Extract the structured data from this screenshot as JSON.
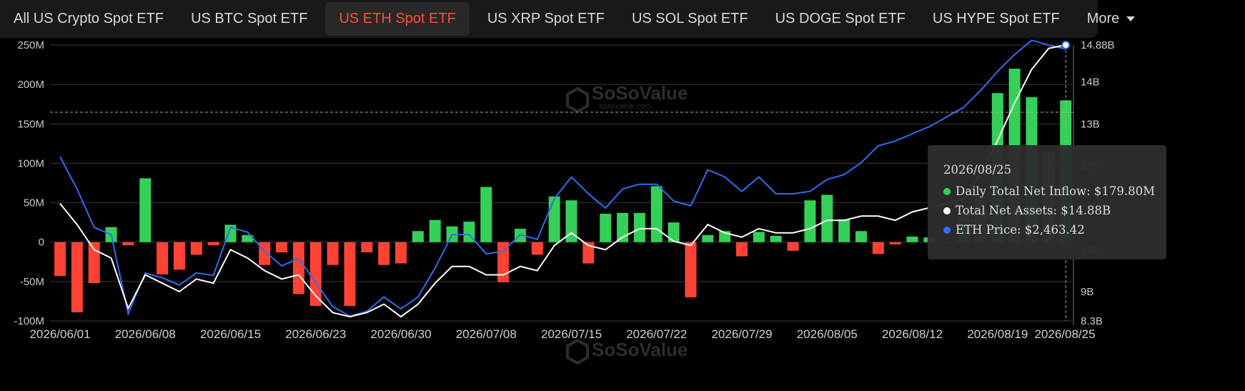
{
  "tabs": [
    {
      "label": "All US Crypto Spot ETF"
    },
    {
      "label": "US BTC Spot ETF"
    },
    {
      "label": "US ETH Spot ETF",
      "active": true
    },
    {
      "label": "US XRP Spot ETF"
    },
    {
      "label": "US SOL Spot ETF"
    },
    {
      "label": "US DOGE Spot ETF"
    },
    {
      "label": "US HYPE Spot ETF"
    }
  ],
  "more_label": "More",
  "watermark": {
    "brand": "SoSoValue",
    "site": "sosovalue.com"
  },
  "tooltip": {
    "date": "2026/08/25",
    "rows": [
      {
        "label": "Daily Total Net Inflow: $179.80M",
        "color": "#34d058"
      },
      {
        "label": "Total Net Assets: $14.88B",
        "color": "#ffffff"
      },
      {
        "label": "ETH Price: $2,463.42",
        "color": "#2f6df0"
      }
    ]
  },
  "chart_data": {
    "type": "bar",
    "colors": {
      "positive": "#34d058",
      "negative": "#ff4233",
      "assets_line": "#ffffff",
      "price_line": "#2f6df0"
    },
    "left_axis": {
      "ticks": [
        "250M",
        "200M",
        "150M",
        "100M",
        "50M",
        "0",
        "-50M",
        "-100M"
      ],
      "values": [
        250,
        200,
        150,
        100,
        50,
        0,
        -50,
        -100
      ],
      "range": [
        -100,
        250
      ]
    },
    "right_axis": {
      "ticks": [
        "14.88B",
        "14B",
        "13B",
        "12B",
        "11B",
        "10B",
        "9B",
        "8.3B"
      ],
      "values": [
        14.88,
        14,
        13,
        12,
        11,
        10,
        9,
        8.3
      ],
      "range": [
        8.3,
        14.88
      ]
    },
    "x_ticks": [
      "2026/06/01",
      "2026/06/08",
      "2026/06/15",
      "2026/06/23",
      "2026/06/30",
      "2026/07/08",
      "2026/07/15",
      "2026/07/22",
      "2026/07/29",
      "2026/08/05",
      "2026/08/12",
      "2026/08/19",
      "2026/08/25"
    ],
    "x_tick_index": [
      0,
      5,
      10,
      15,
      20,
      25,
      30,
      35,
      40,
      45,
      50,
      55,
      59
    ],
    "series": [
      {
        "name": "Daily Total Net Inflow",
        "unit": "M USD",
        "values": [
          -43,
          -89,
          -52,
          19,
          -4,
          81,
          -41,
          -35,
          -16,
          -4,
          22,
          9,
          -29,
          -13,
          -66,
          -81,
          -29,
          -81,
          -13,
          -29,
          -27,
          14,
          28,
          20,
          26,
          70,
          -51,
          17,
          -16,
          58,
          53,
          -27,
          36,
          37,
          37,
          71,
          25,
          -70,
          9,
          14,
          -18,
          13,
          8,
          -11,
          53,
          60,
          29,
          14,
          -15,
          -3,
          7,
          6,
          -2,
          39,
          56,
          189,
          220,
          184,
          115,
          179.8
        ]
      },
      {
        "name": "Total Net Assets",
        "unit": "B USD",
        "values": [
          11.1,
          10.6,
          10.0,
          9.8,
          8.6,
          9.4,
          9.2,
          9.0,
          9.3,
          9.2,
          10.0,
          9.8,
          9.5,
          9.3,
          9.4,
          8.9,
          8.5,
          8.4,
          8.5,
          8.7,
          8.4,
          8.7,
          9.2,
          9.6,
          9.6,
          9.4,
          9.4,
          9.6,
          9.5,
          10.1,
          10.4,
          10.1,
          10.0,
          10.3,
          10.5,
          10.5,
          10.2,
          10.1,
          10.6,
          10.4,
          10.3,
          10.5,
          10.4,
          10.4,
          10.5,
          10.7,
          10.7,
          10.8,
          10.8,
          10.7,
          10.9,
          11.0,
          11.1,
          11.2,
          11.8,
          12.6,
          13.5,
          14.3,
          14.8,
          14.88
        ]
      },
      {
        "name": "ETH Price",
        "unit": "USD",
        "values": [
          2015,
          1880,
          1720,
          1690,
          1360,
          1530,
          1510,
          1480,
          1530,
          1520,
          1720,
          1700,
          1620,
          1560,
          1590,
          1490,
          1390,
          1350,
          1370,
          1430,
          1380,
          1430,
          1550,
          1690,
          1690,
          1610,
          1620,
          1690,
          1670,
          1840,
          1930,
          1860,
          1800,
          1880,
          1900,
          1900,
          1830,
          1810,
          1960,
          1930,
          1870,
          1930,
          1860,
          1860,
          1870,
          1920,
          1940,
          1990,
          2060,
          2080,
          2110,
          2140,
          2180,
          2220,
          2290,
          2370,
          2440,
          2500,
          2480,
          2463.42
        ]
      }
    ],
    "price_range": [
      1330,
      2480
    ],
    "grid": true,
    "reference_line": "dashed horizontal near 165M",
    "title": "",
    "xlabel": "",
    "ylabel": ""
  }
}
